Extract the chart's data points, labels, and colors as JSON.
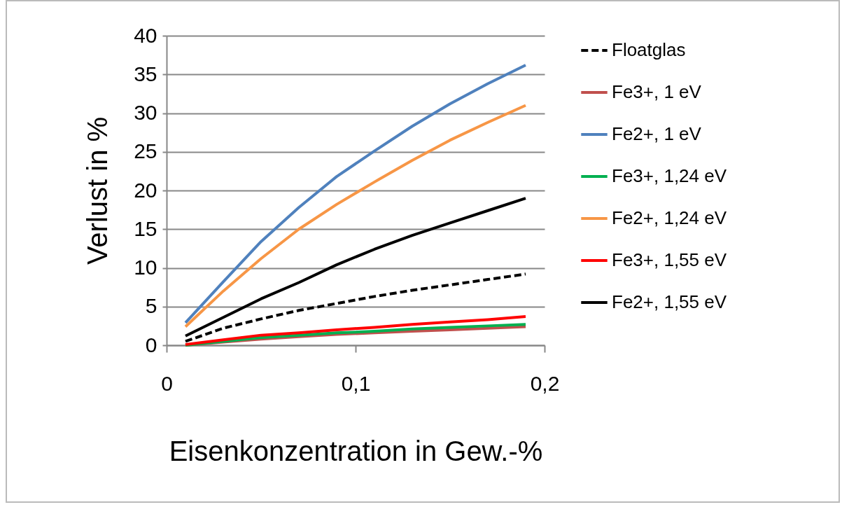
{
  "chart_data": {
    "type": "line",
    "xlabel": "Eisenkonzentration in Gew.-%",
    "ylabel": "Verlust in %",
    "x": [
      0.01,
      0.03,
      0.05,
      0.07,
      0.09,
      0.11,
      0.13,
      0.15,
      0.17,
      0.19
    ],
    "xlim": [
      0,
      0.2
    ],
    "xticks": [
      0,
      {
        "value": 0.1,
        "label": "0,1"
      },
      {
        "value": 0.2,
        "label": "0,2"
      }
    ],
    "ylim": [
      0,
      40
    ],
    "yticks": [
      0,
      5,
      10,
      15,
      20,
      25,
      30,
      35,
      40
    ],
    "grid": "y",
    "legend": "right",
    "series": [
      {
        "name": "Floatglas",
        "color": "#000000",
        "line_style": "dashed",
        "values": [
          0.5,
          2.2,
          3.4,
          4.5,
          5.4,
          6.3,
          7.1,
          7.8,
          8.5,
          9.2
        ]
      },
      {
        "name": "Fe3+, 1 eV",
        "color": "#c0504d",
        "values": [
          0.0,
          0.4,
          0.8,
          1.1,
          1.4,
          1.6,
          1.8,
          2.0,
          2.2,
          2.4
        ]
      },
      {
        "name": "Fe2+, 1 eV",
        "color": "#4f81bd",
        "values": [
          2.9,
          8.2,
          13.4,
          17.8,
          21.8,
          25.1,
          28.3,
          31.2,
          33.8,
          36.2
        ]
      },
      {
        "name": "Fe3+, 1,24 eV",
        "color": "#00b050",
        "values": [
          0.0,
          0.5,
          1.0,
          1.3,
          1.6,
          1.8,
          2.1,
          2.3,
          2.5,
          2.7
        ]
      },
      {
        "name": "Fe2+, 1,24 eV",
        "color": "#f79646",
        "values": [
          2.4,
          7.0,
          11.2,
          15.0,
          18.2,
          21.1,
          23.9,
          26.5,
          28.8,
          31.0
        ]
      },
      {
        "name": "Fe3+, 1,55 eV",
        "color": "#ff0000",
        "values": [
          0.1,
          0.7,
          1.3,
          1.6,
          2.0,
          2.3,
          2.7,
          3.0,
          3.3,
          3.7
        ]
      },
      {
        "name": "Fe2+, 1,55 eV",
        "color": "#000000",
        "values": [
          1.2,
          3.6,
          6.0,
          8.1,
          10.4,
          12.4,
          14.2,
          15.8,
          17.4,
          19.0
        ]
      }
    ]
  }
}
